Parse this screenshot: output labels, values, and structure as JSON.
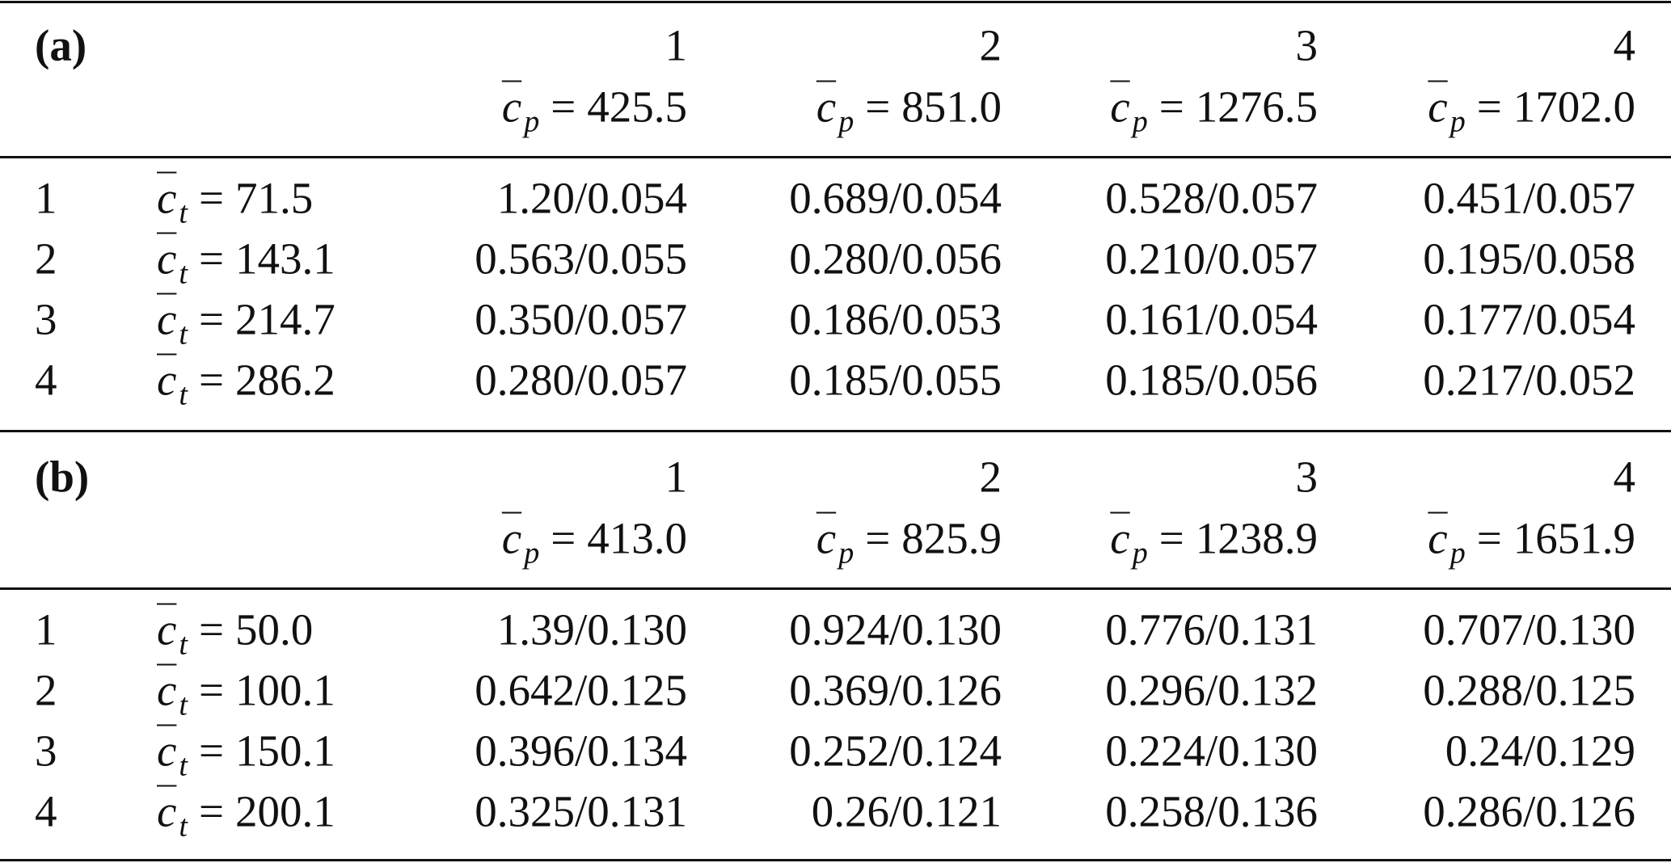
{
  "panels": [
    {
      "label": "(a)",
      "col_var": {
        "symbol": "c",
        "sub": "p",
        "op": "="
      },
      "row_var": {
        "symbol": "c",
        "sub": "t",
        "op": "="
      },
      "columns": [
        {
          "index": "1",
          "value": "425.5"
        },
        {
          "index": "2",
          "value": "851.0"
        },
        {
          "index": "3",
          "value": "1276.5"
        },
        {
          "index": "4",
          "value": "1702.0"
        }
      ],
      "rows": [
        {
          "index": "1",
          "value": "71.5",
          "cells": [
            "1.20/0.054",
            "0.689/0.054",
            "0.528/0.057",
            "0.451/0.057"
          ]
        },
        {
          "index": "2",
          "value": "143.1",
          "cells": [
            "0.563/0.055",
            "0.280/0.056",
            "0.210/0.057",
            "0.195/0.058"
          ]
        },
        {
          "index": "3",
          "value": "214.7",
          "cells": [
            "0.350/0.057",
            "0.186/0.053",
            "0.161/0.054",
            "0.177/0.054"
          ]
        },
        {
          "index": "4",
          "value": "286.2",
          "cells": [
            "0.280/0.057",
            "0.185/0.055",
            "0.185/0.056",
            "0.217/0.052"
          ]
        }
      ]
    },
    {
      "label": "(b)",
      "col_var": {
        "symbol": "c",
        "sub": "p",
        "op": "="
      },
      "row_var": {
        "symbol": "c",
        "sub": "t",
        "op": "="
      },
      "columns": [
        {
          "index": "1",
          "value": "413.0"
        },
        {
          "index": "2",
          "value": "825.9"
        },
        {
          "index": "3",
          "value": "1238.9"
        },
        {
          "index": "4",
          "value": "1651.9"
        }
      ],
      "rows": [
        {
          "index": "1",
          "value": "50.0",
          "cells": [
            "1.39/0.130",
            "0.924/0.130",
            "0.776/0.131",
            "0.707/0.130"
          ]
        },
        {
          "index": "2",
          "value": "100.1",
          "cells": [
            "0.642/0.125",
            "0.369/0.126",
            "0.296/0.132",
            "0.288/0.125"
          ]
        },
        {
          "index": "3",
          "value": "150.1",
          "cells": [
            "0.396/0.134",
            "0.252/0.124",
            "0.224/0.130",
            "0.24/0.129"
          ]
        },
        {
          "index": "4",
          "value": "200.1",
          "cells": [
            "0.325/0.131",
            "0.26/0.121",
            "0.258/0.136",
            "0.286/0.126"
          ]
        }
      ]
    }
  ]
}
